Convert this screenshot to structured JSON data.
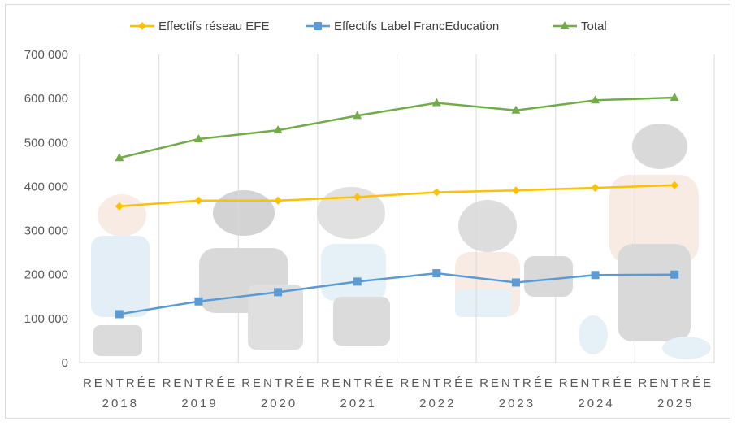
{
  "chart_data": {
    "type": "line",
    "categories": [
      [
        "RENTRÉE",
        "2018"
      ],
      [
        "RENTRÉE",
        "2019"
      ],
      [
        "RENTRÉE",
        "2020"
      ],
      [
        "RENTRÉE",
        "2021"
      ],
      [
        "RENTRÉE",
        "2022"
      ],
      [
        "RENTRÉE",
        "2023"
      ],
      [
        "RENTRÉE",
        "2024"
      ],
      [
        "RENTRÉE",
        "2025"
      ]
    ],
    "series": [
      {
        "name": "Effectifs réseau EFE",
        "color": "#ffc000",
        "marker": "diamond",
        "values": [
          355000,
          368000,
          368000,
          376000,
          387000,
          391000,
          397000,
          403000
        ]
      },
      {
        "name": "Effectifs Label FrancEducation",
        "color": "#5b9bd5",
        "marker": "square",
        "values": [
          110000,
          139000,
          160000,
          184000,
          203000,
          182000,
          199000,
          200000
        ]
      },
      {
        "name": "Total",
        "color": "#70ad47",
        "marker": "triangle",
        "values": [
          465000,
          508000,
          528000,
          561000,
          590000,
          573000,
          596000,
          602000
        ]
      }
    ],
    "yticks": [
      "0",
      "100 000",
      "200 000",
      "300 000",
      "400 000",
      "500 000",
      "600 000",
      "700 000"
    ],
    "ylim": [
      0,
      700000
    ],
    "grid": "vertical",
    "legend": "top-center",
    "title": "",
    "xlabel": "",
    "ylabel": ""
  }
}
